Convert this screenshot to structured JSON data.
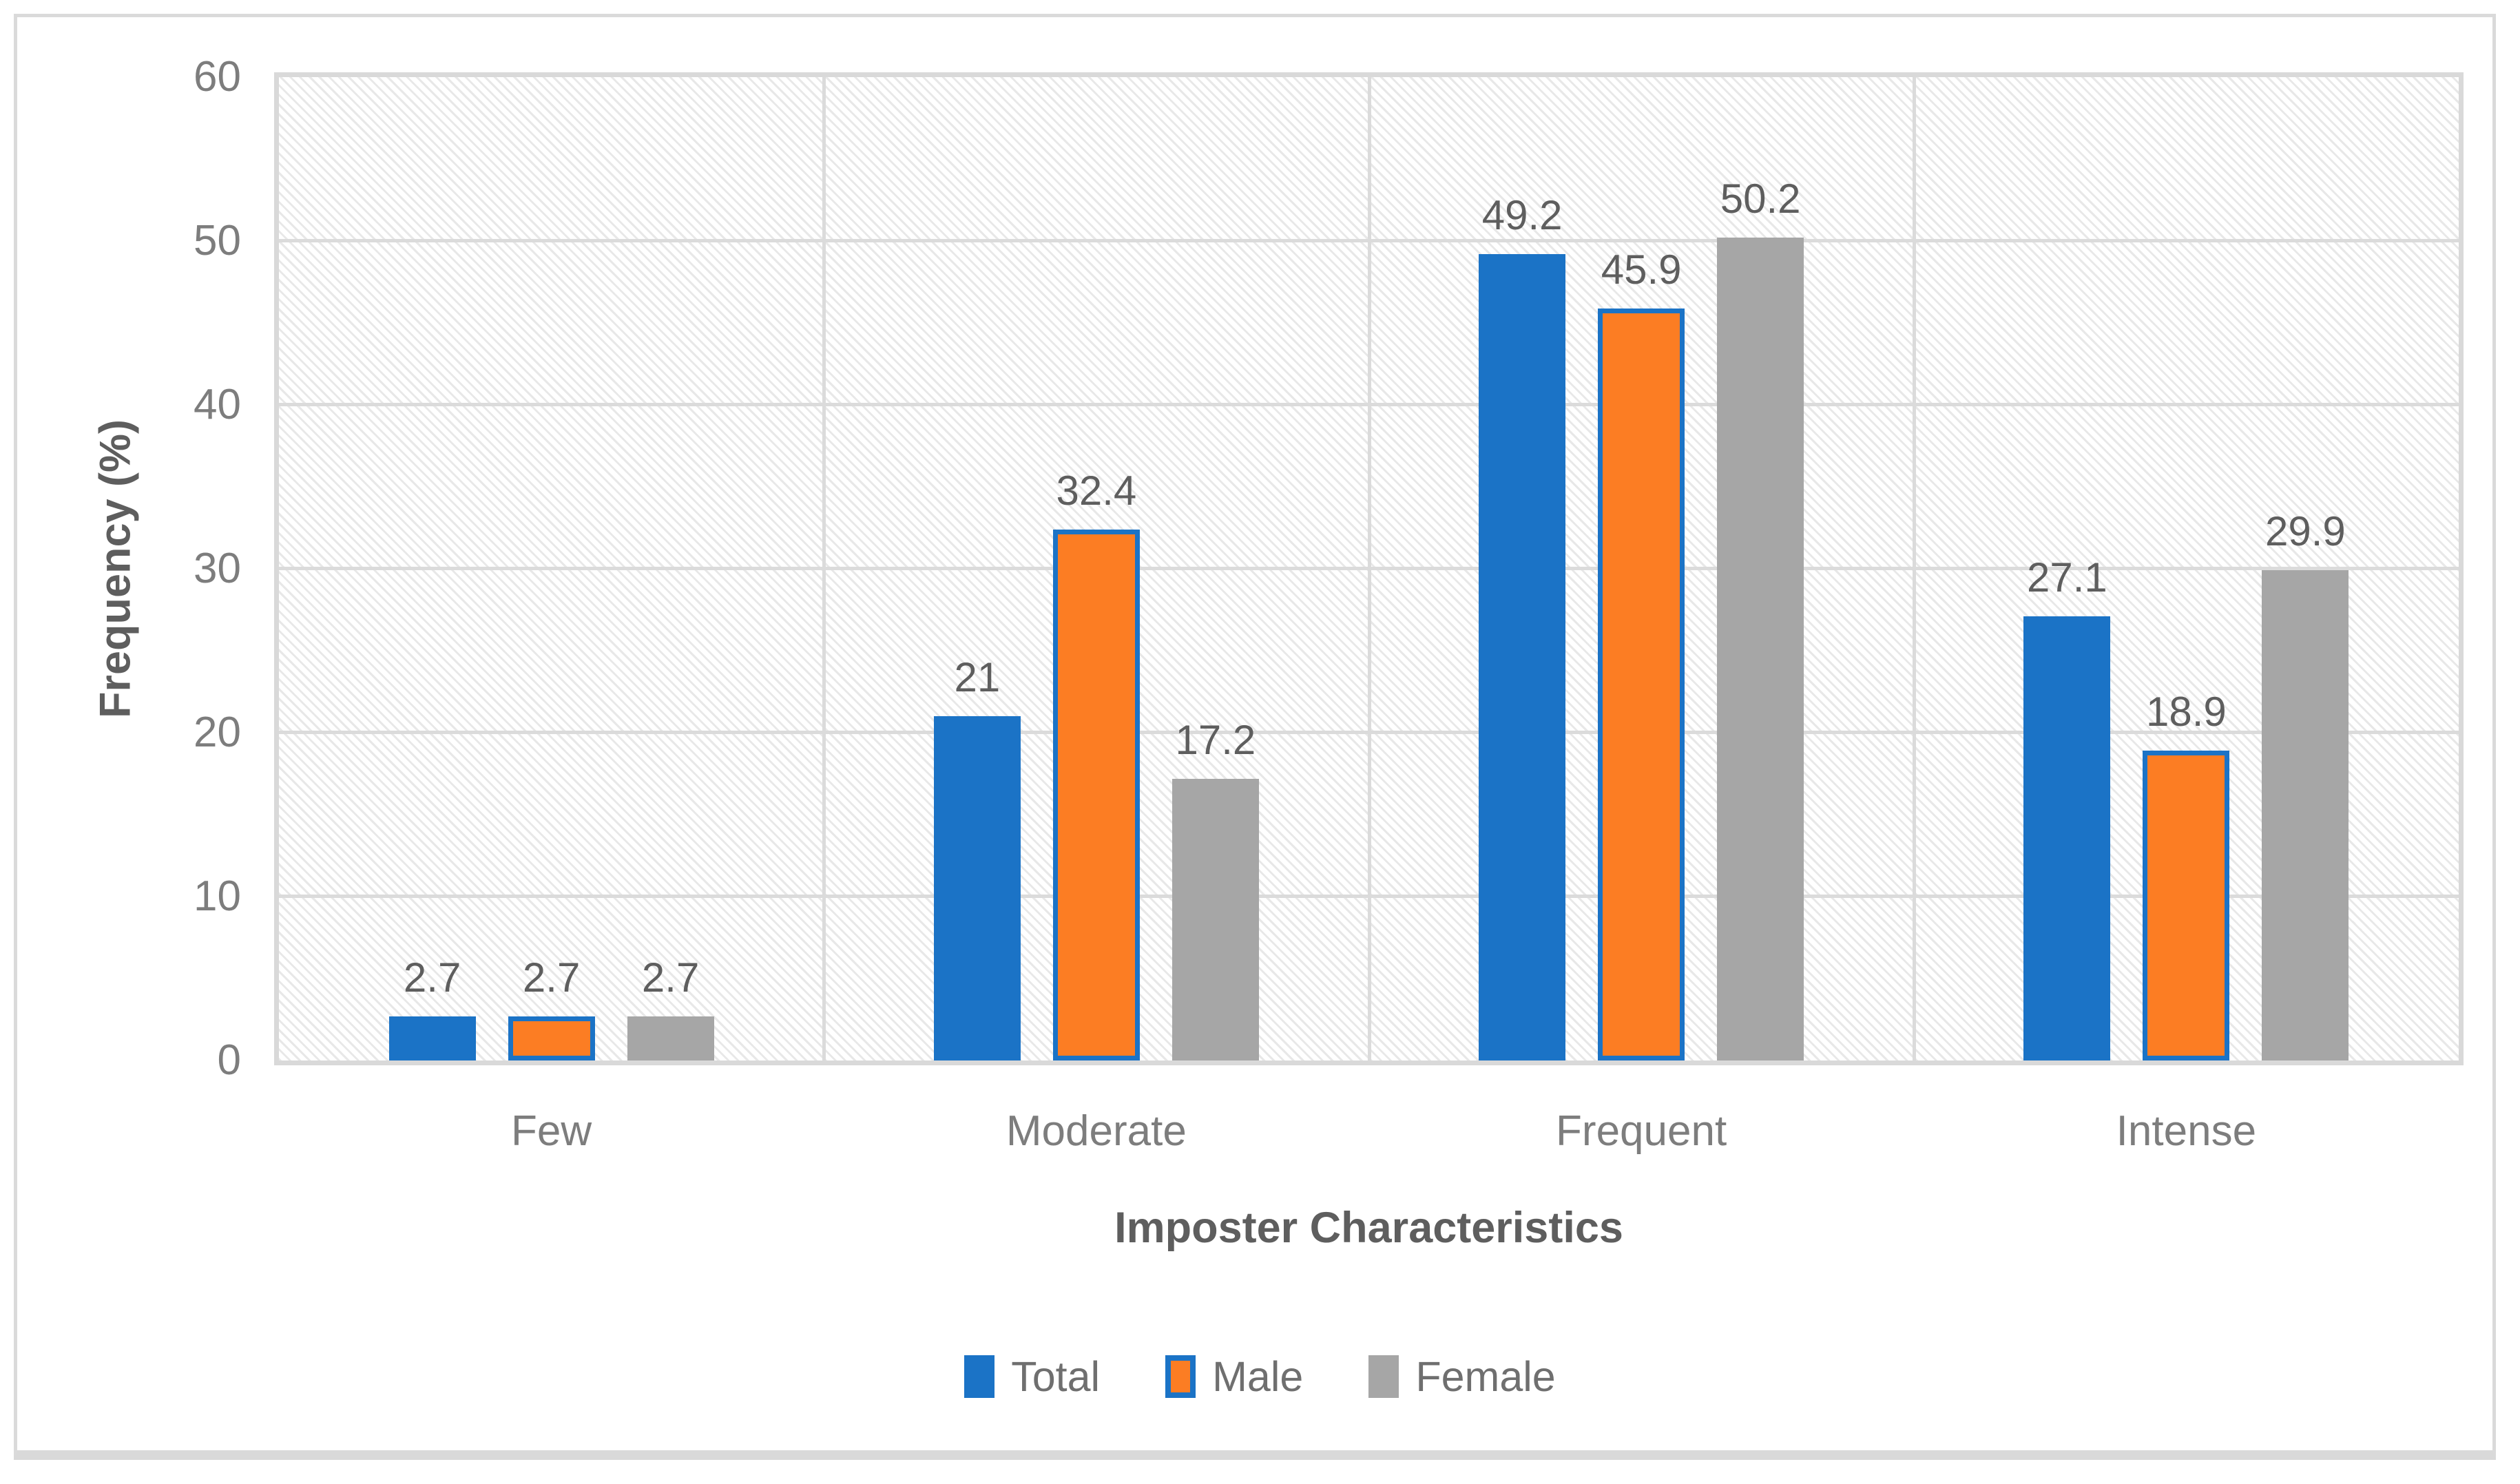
{
  "chart_data": {
    "type": "bar",
    "title": "",
    "xlabel": "Imposter Characteristics",
    "ylabel": "Frequency (%)",
    "categories": [
      "Few",
      "Moderate",
      "Frequent",
      "Intense"
    ],
    "series": [
      {
        "name": "Total",
        "color": "#1b73c6",
        "values": [
          2.7,
          21,
          49.2,
          27.1
        ],
        "labels": [
          "2.7",
          "21",
          "49.2",
          "27.1"
        ]
      },
      {
        "name": "Male",
        "color": "#fc7d23",
        "border_color": "#1b73c6",
        "values": [
          2.7,
          32.4,
          45.9,
          18.9
        ],
        "labels": [
          "2.7",
          "32.4",
          "45.9",
          "18.9"
        ]
      },
      {
        "name": "Female",
        "color": "#a6a6a6",
        "values": [
          2.7,
          17.2,
          50.2,
          29.9
        ],
        "labels": [
          "2.7",
          "17.2",
          "50.2",
          "29.9"
        ]
      }
    ],
    "ylim": [
      0,
      60
    ],
    "yticks": [
      0,
      10,
      20,
      30,
      40,
      50,
      60
    ],
    "grid": true,
    "legend_position": "bottom",
    "plot_background": "diagonal-hatch",
    "colors": {
      "gridline": "#dbdbdb",
      "plot_border": "#d9d9d9",
      "tick_text": "#7d7d7d",
      "data_label_text": "#5e5e5e",
      "axis_title_text": "#5e5e5e",
      "legend_text": "#6f6f6f"
    }
  }
}
